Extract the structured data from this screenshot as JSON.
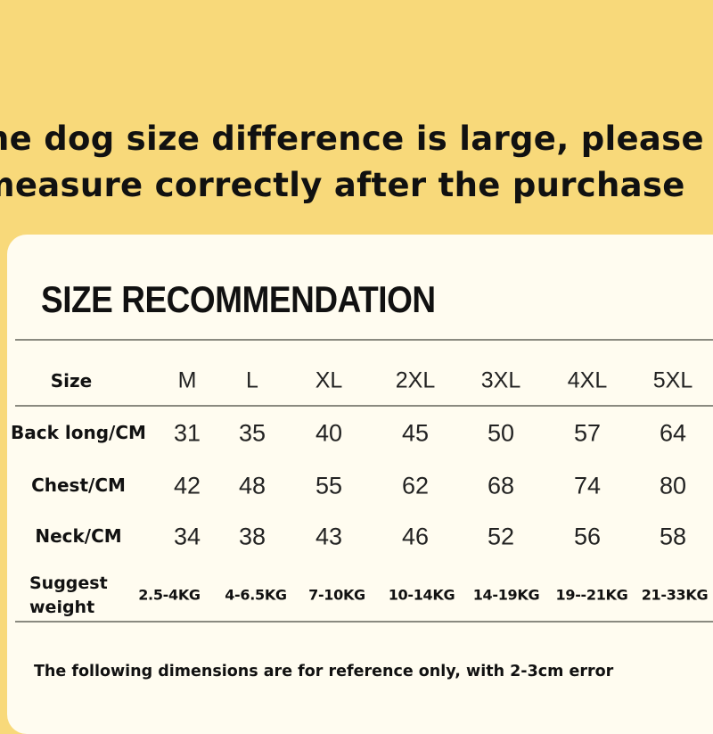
{
  "headline": {
    "line1": "the dog size difference is large, please",
    "line2": "measure correctly after the purchase"
  },
  "card": {
    "title": "SIZE RECOMMENDATION",
    "table": {
      "header_label": "Size",
      "sizes": [
        "M",
        "L",
        "XL",
        "2XL",
        "3XL",
        "4XL",
        "5XL"
      ],
      "rows": [
        {
          "label": "Back long/CM",
          "values": [
            "31",
            "35",
            "40",
            "45",
            "50",
            "57",
            "64"
          ]
        },
        {
          "label": "Chest/CM",
          "values": [
            "42",
            "48",
            "55",
            "62",
            "68",
            "74",
            "80"
          ]
        },
        {
          "label": "Neck/CM",
          "values": [
            "34",
            "38",
            "43",
            "46",
            "52",
            "56",
            "58"
          ]
        }
      ],
      "weight_row": {
        "label_line1": "Suggest",
        "label_line2": "weight",
        "values": [
          "2.5-4KG",
          "4-6.5KG",
          "7-10KG",
          "10-14KG",
          "14-19KG",
          "19--21KG",
          "21-33KG"
        ]
      }
    },
    "footnote": "The following dimensions are for reference only, with 2-3cm error"
  },
  "colors": {
    "background": "#f8d97a",
    "card": "#fffcf0",
    "text": "#111111"
  }
}
